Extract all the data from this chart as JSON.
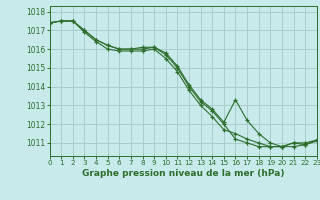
{
  "title": "Graphe pression niveau de la mer (hPa)",
  "bg_color": "#c8eaea",
  "grid_color": "#aacccc",
  "line_color": "#2d6e2d",
  "xlim": [
    0,
    23
  ],
  "ylim": [
    1010.3,
    1018.3
  ],
  "yticks": [
    1011,
    1012,
    1013,
    1014,
    1015,
    1016,
    1017,
    1018
  ],
  "xticks": [
    0,
    1,
    2,
    3,
    4,
    5,
    6,
    7,
    8,
    9,
    10,
    11,
    12,
    13,
    14,
    15,
    16,
    17,
    18,
    19,
    20,
    21,
    22,
    23
  ],
  "series": [
    [
      1017.4,
      1017.5,
      1017.5,
      1017.0,
      1016.5,
      1016.2,
      1016.0,
      1016.0,
      1016.1,
      1016.1,
      1015.8,
      1015.1,
      1014.1,
      1013.3,
      1012.8,
      1012.1,
      1013.3,
      1012.2,
      1011.5,
      1011.0,
      1010.8,
      1011.0,
      1011.0,
      1011.15
    ],
    [
      1017.4,
      1017.5,
      1017.5,
      1016.9,
      1016.4,
      1016.0,
      1015.9,
      1015.9,
      1015.9,
      1016.0,
      1015.5,
      1014.8,
      1013.8,
      1013.0,
      1012.4,
      1011.7,
      1011.5,
      1011.2,
      1011.0,
      1010.8,
      1010.8,
      1010.8,
      1010.9,
      1011.1
    ],
    [
      1017.4,
      1017.5,
      1017.5,
      1017.0,
      1016.5,
      1016.2,
      1016.0,
      1016.0,
      1016.0,
      1016.1,
      1015.7,
      1015.0,
      1014.0,
      1013.2,
      1012.7,
      1012.0,
      1011.2,
      1011.0,
      1010.8,
      1010.8,
      1010.8,
      1011.0,
      1010.9,
      1011.15
    ]
  ]
}
